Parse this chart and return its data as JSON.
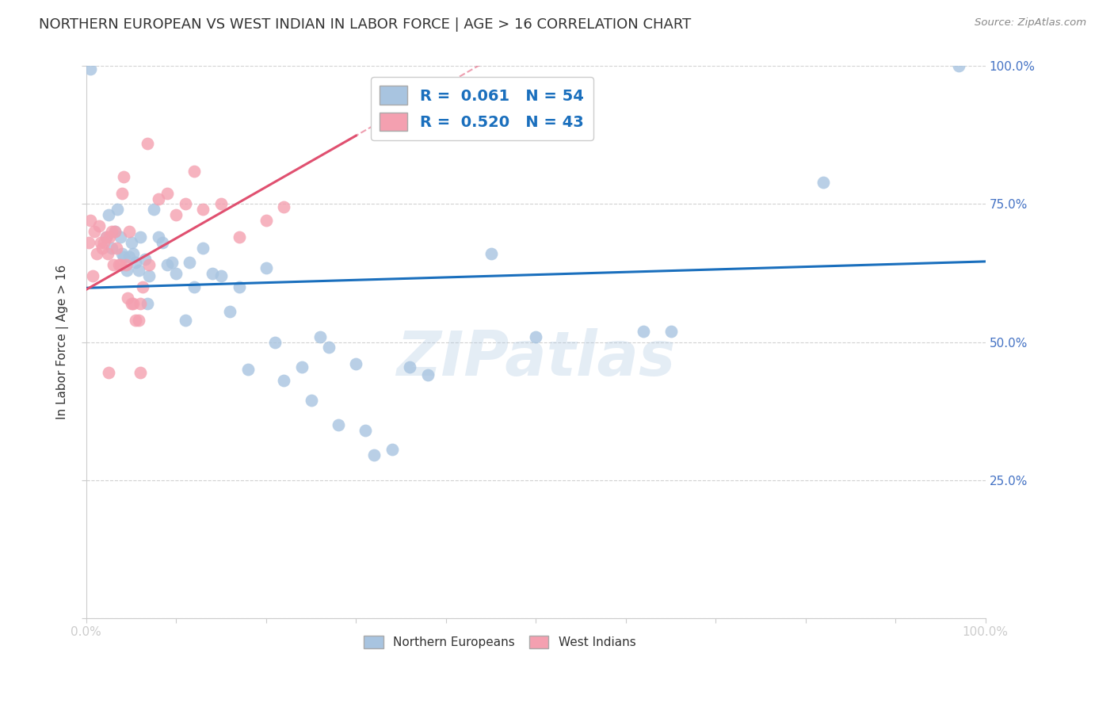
{
  "title": "NORTHERN EUROPEAN VS WEST INDIAN IN LABOR FORCE | AGE > 16 CORRELATION CHART",
  "source": "Source: ZipAtlas.com",
  "ylabel": "In Labor Force | Age > 16",
  "watermark": "ZIPatlas",
  "xlim": [
    0.0,
    1.0
  ],
  "ylim": [
    0.0,
    1.0
  ],
  "xticks": [
    0.0,
    0.1,
    0.2,
    0.3,
    0.4,
    0.5,
    0.6,
    0.7,
    0.8,
    0.9,
    1.0
  ],
  "yticks": [
    0.0,
    0.25,
    0.5,
    0.75,
    1.0
  ],
  "xticklabels_show": [
    "0.0%",
    "100.0%"
  ],
  "yticklabels": [
    "",
    "25.0%",
    "50.0%",
    "75.0%",
    "100.0%"
  ],
  "blue_R": 0.061,
  "blue_N": 54,
  "pink_R": 0.52,
  "pink_N": 43,
  "blue_color": "#a8c4e0",
  "pink_color": "#f4a0b0",
  "blue_line_color": "#1a6fbd",
  "pink_line_color": "#e05070",
  "legend_text_color": "#1a6fbd",
  "blue_scatter": [
    [
      0.005,
      0.995
    ],
    [
      0.022,
      0.69
    ],
    [
      0.025,
      0.73
    ],
    [
      0.028,
      0.67
    ],
    [
      0.032,
      0.7
    ],
    [
      0.035,
      0.74
    ],
    [
      0.038,
      0.69
    ],
    [
      0.04,
      0.66
    ],
    [
      0.042,
      0.655
    ],
    [
      0.045,
      0.63
    ],
    [
      0.048,
      0.655
    ],
    [
      0.05,
      0.68
    ],
    [
      0.052,
      0.66
    ],
    [
      0.055,
      0.645
    ],
    [
      0.058,
      0.63
    ],
    [
      0.06,
      0.69
    ],
    [
      0.065,
      0.65
    ],
    [
      0.068,
      0.57
    ],
    [
      0.07,
      0.62
    ],
    [
      0.075,
      0.74
    ],
    [
      0.08,
      0.69
    ],
    [
      0.085,
      0.68
    ],
    [
      0.09,
      0.64
    ],
    [
      0.095,
      0.645
    ],
    [
      0.1,
      0.625
    ],
    [
      0.11,
      0.54
    ],
    [
      0.115,
      0.645
    ],
    [
      0.12,
      0.6
    ],
    [
      0.13,
      0.67
    ],
    [
      0.14,
      0.625
    ],
    [
      0.15,
      0.62
    ],
    [
      0.16,
      0.555
    ],
    [
      0.17,
      0.6
    ],
    [
      0.18,
      0.45
    ],
    [
      0.2,
      0.635
    ],
    [
      0.21,
      0.5
    ],
    [
      0.22,
      0.43
    ],
    [
      0.24,
      0.455
    ],
    [
      0.25,
      0.395
    ],
    [
      0.26,
      0.51
    ],
    [
      0.27,
      0.49
    ],
    [
      0.28,
      0.35
    ],
    [
      0.3,
      0.46
    ],
    [
      0.31,
      0.34
    ],
    [
      0.32,
      0.295
    ],
    [
      0.34,
      0.305
    ],
    [
      0.36,
      0.455
    ],
    [
      0.38,
      0.44
    ],
    [
      0.45,
      0.66
    ],
    [
      0.5,
      0.51
    ],
    [
      0.62,
      0.52
    ],
    [
      0.65,
      0.52
    ],
    [
      0.82,
      0.79
    ],
    [
      0.97,
      1.0
    ]
  ],
  "pink_scatter": [
    [
      0.003,
      0.68
    ],
    [
      0.005,
      0.72
    ],
    [
      0.007,
      0.62
    ],
    [
      0.009,
      0.7
    ],
    [
      0.012,
      0.66
    ],
    [
      0.014,
      0.71
    ],
    [
      0.016,
      0.68
    ],
    [
      0.018,
      0.67
    ],
    [
      0.02,
      0.68
    ],
    [
      0.022,
      0.69
    ],
    [
      0.024,
      0.66
    ],
    [
      0.026,
      0.69
    ],
    [
      0.028,
      0.7
    ],
    [
      0.03,
      0.64
    ],
    [
      0.032,
      0.7
    ],
    [
      0.034,
      0.67
    ],
    [
      0.036,
      0.64
    ],
    [
      0.038,
      0.64
    ],
    [
      0.04,
      0.77
    ],
    [
      0.042,
      0.8
    ],
    [
      0.044,
      0.64
    ],
    [
      0.046,
      0.58
    ],
    [
      0.048,
      0.7
    ],
    [
      0.05,
      0.57
    ],
    [
      0.052,
      0.57
    ],
    [
      0.055,
      0.54
    ],
    [
      0.058,
      0.54
    ],
    [
      0.06,
      0.57
    ],
    [
      0.063,
      0.6
    ],
    [
      0.068,
      0.86
    ],
    [
      0.07,
      0.64
    ],
    [
      0.08,
      0.76
    ],
    [
      0.09,
      0.77
    ],
    [
      0.1,
      0.73
    ],
    [
      0.11,
      0.75
    ],
    [
      0.12,
      0.81
    ],
    [
      0.13,
      0.74
    ],
    [
      0.15,
      0.75
    ],
    [
      0.17,
      0.69
    ],
    [
      0.2,
      0.72
    ],
    [
      0.22,
      0.745
    ],
    [
      0.025,
      0.445
    ],
    [
      0.06,
      0.445
    ]
  ],
  "background_color": "#ffffff",
  "grid_color": "#cccccc",
  "title_color": "#333333",
  "title_fontsize": 13,
  "axis_label_color": "#333333",
  "tick_label_color": "#4472c4",
  "tick_color": "#cccccc"
}
